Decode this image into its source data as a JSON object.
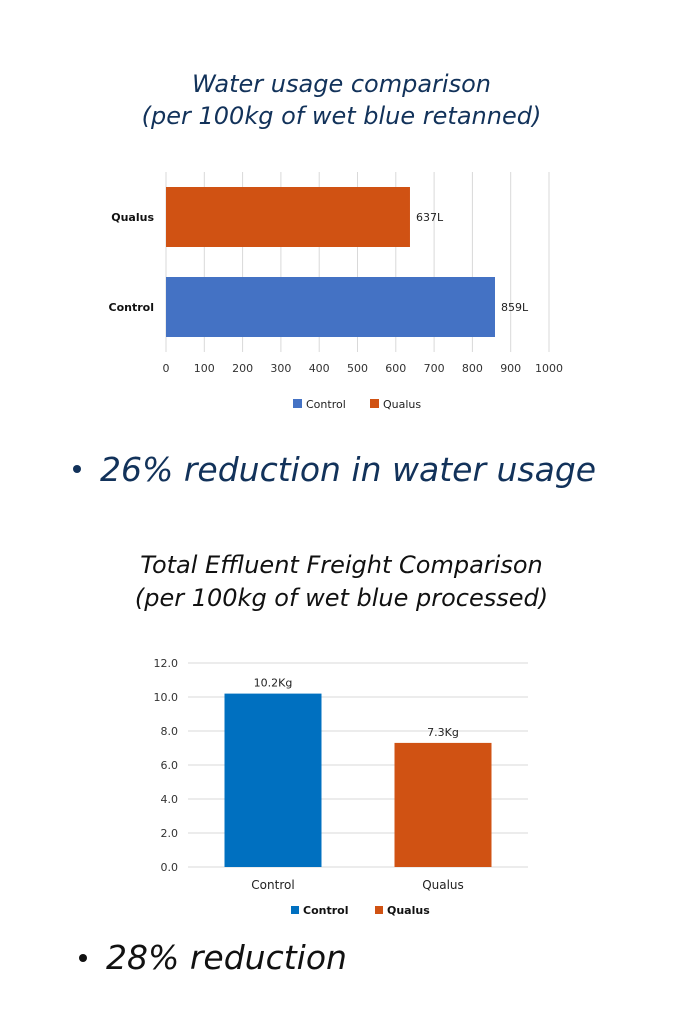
{
  "chart_data": [
    {
      "type": "bar",
      "orientation": "horizontal",
      "title": "Water usage comparison",
      "subtitle": "(per 100kg of wet blue retanned)",
      "categories": [
        "Qualus",
        "Control"
      ],
      "values": [
        637,
        859
      ],
      "data_labels": [
        "637L",
        "859L"
      ],
      "bar_colors": [
        "#d05213",
        "#4472c4"
      ],
      "xlim": [
        0,
        1000
      ],
      "x_ticks": [
        "0",
        "100",
        "200",
        "300",
        "400",
        "500",
        "600",
        "700",
        "800",
        "900",
        "1000"
      ],
      "grid": true,
      "legend": [
        {
          "label": "Control",
          "color": "#4472c4"
        },
        {
          "label": "Qualus",
          "color": "#d05213"
        }
      ],
      "legend_position": "bottom"
    },
    {
      "type": "bar",
      "orientation": "vertical",
      "title": "Total Effluent Freight Comparison",
      "subtitle": "(per 100kg of wet blue processed)",
      "categories": [
        "Control",
        "Qualus"
      ],
      "values": [
        10.2,
        7.3
      ],
      "data_labels": [
        "10.2Kg",
        "7.3Kg"
      ],
      "bar_colors": [
        "#0070c0",
        "#d05213"
      ],
      "ylim": [
        0,
        12
      ],
      "y_ticks": [
        "0.0",
        "2.0",
        "4.0",
        "6.0",
        "8.0",
        "10.0",
        "12.0"
      ],
      "grid": true,
      "legend": [
        {
          "label": "Control",
          "color": "#0070c0"
        },
        {
          "label": "Qualus",
          "color": "#d05213"
        }
      ],
      "legend_position": "bottom"
    }
  ],
  "bullets": {
    "water": "26% reduction in water usage",
    "effluent": "28% reduction"
  }
}
